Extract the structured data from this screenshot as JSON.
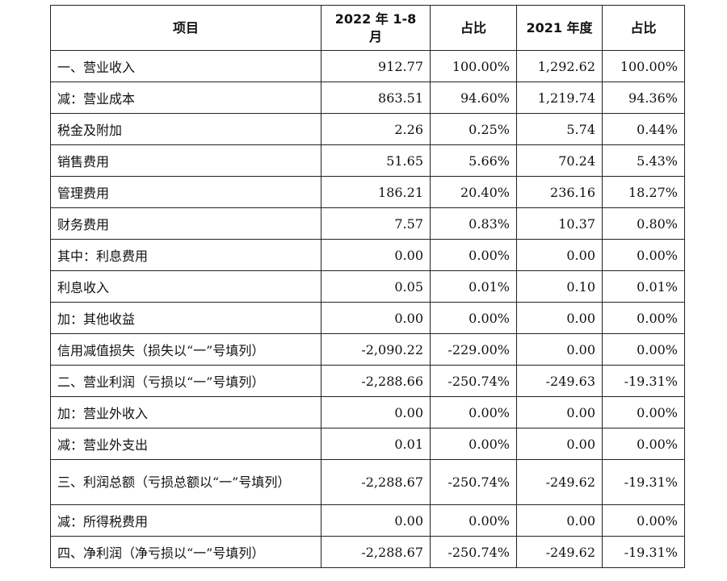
{
  "headers": [
    "项目",
    "2022 年 1-8 月",
    "占比",
    "2021 年度",
    "占比"
  ],
  "rows": [
    [
      "一、营业收入",
      "912.77",
      "100.00%",
      "1,292.62",
      "100.00%"
    ],
    [
      "减：营业成本",
      "863.51",
      "94.60%",
      "1,219.74",
      "94.36%"
    ],
    [
      "税金及附加",
      "2.26",
      "0.25%",
      "5.74",
      "0.44%"
    ],
    [
      "销售费用",
      "51.65",
      "5.66%",
      "70.24",
      "5.43%"
    ],
    [
      "管理费用",
      "186.21",
      "20.40%",
      "236.16",
      "18.27%"
    ],
    [
      "财务费用",
      "7.57",
      "0.83%",
      "10.37",
      "0.80%"
    ],
    [
      "其中：利息费用",
      "0.00",
      "0.00%",
      "0.00",
      "0.00%"
    ],
    [
      "利息收入",
      "0.05",
      "0.01%",
      "0.10",
      "0.01%"
    ],
    [
      "加：其他收益",
      "0.00",
      "0.00%",
      "0.00",
      "0.00%"
    ],
    [
      "信用减值损失（损失以“一”号填列）",
      "-2,090.22",
      "-229.00%",
      "0.00",
      "0.00%"
    ],
    [
      "二、营业利润（亏损以“一”号填列）",
      "-2,288.66",
      "-250.74%",
      "-249.63",
      "-19.31%"
    ],
    [
      "加：营业外收入",
      "0.00",
      "0.00%",
      "0.00",
      "0.00%"
    ],
    [
      "减：营业外支出",
      "0.01",
      "0.00%",
      "0.00",
      "0.00%"
    ],
    [
      "三、利润总额（亏损总额以“一”号填列）",
      "-2,288.67",
      "-250.74%",
      "-249.62",
      "-19.31%"
    ],
    [
      "减：所得税费用",
      "0.00",
      "0.00%",
      "0.00",
      "0.00%"
    ],
    [
      "四、净利润（净亏损以“一”号填列）",
      "-2,288.67",
      "-250.74%",
      "-249.62",
      "-19.31%"
    ]
  ]
}
